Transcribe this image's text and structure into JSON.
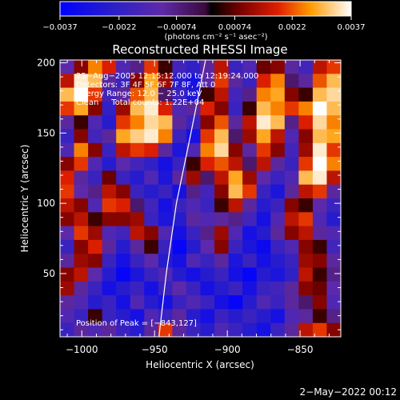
{
  "chart_data": {
    "type": "heatmap",
    "title": "Reconstructed RHESSI Image",
    "xlabel": "Heliocentric X (arcsec)",
    "ylabel": "Heliocentric Y (arcsec)",
    "xlim": [
      -1015,
      -822
    ],
    "ylim": [
      5,
      202
    ],
    "x_ticks": [
      -1000,
      -950,
      -900,
      -850
    ],
    "x_tick_labels": [
      "−1000",
      "−950",
      "−900",
      "−850"
    ],
    "y_ticks": [
      50,
      100,
      150,
      200
    ],
    "y_tick_labels": [
      "50",
      "100",
      "150",
      "200"
    ],
    "colorbar": {
      "range": [
        -0.0037,
        0.0037
      ],
      "ticks": [
        -0.0037,
        -0.0022,
        -0.00074,
        0.00074,
        0.0022,
        0.0037
      ],
      "tick_labels": [
        "−0.0037",
        "−0.0022",
        "−0.00074",
        "0.00074",
        "0.0022",
        "0.0037"
      ],
      "unit": "(photons cm⁻² s⁻¹ asec⁻²)"
    },
    "annotations": [
      "25−Aug−2005 12:15:12.000 to 12:19:24.000",
      "Detectors: 3F 4F 5F 6F 7F 8F, Att 0",
      "Energy Range: 12.0 − 25.0 keV",
      "Clean     Total counts: 1.22E+04"
    ],
    "peak_label": "Position of Peak = [−843,127]",
    "limb_curve": [
      [
        -947,
        5
      ],
      [
        -942,
        50
      ],
      [
        -935,
        100
      ],
      [
        -925,
        150
      ],
      [
        -915,
        202
      ]
    ],
    "intensity_grid": {
      "rows": 20,
      "cols": 20,
      "note": "row 0 = top (y≈200), col 0 = left (x≈-1010); values in colorbar units",
      "values": [
        [
          -0.0012,
          0.001,
          0.0025,
          0.0018,
          -0.0015,
          -0.0008,
          0.002,
          0.0005,
          -0.0018,
          -0.0022,
          -0.001,
          0.0015,
          -0.002,
          -0.0015,
          0.0008,
          0.001,
          -0.001,
          -0.0018,
          0.0015,
          0.002
        ],
        [
          0.0015,
          0.0035,
          0.003,
          -0.001,
          -0.002,
          0.001,
          0.0028,
          0.0012,
          -0.0025,
          -0.003,
          -0.0012,
          0.002,
          -0.001,
          -0.002,
          0.0018,
          0.0025,
          -0.0005,
          -0.001,
          0.0022,
          0.003
        ],
        [
          0.003,
          0.0037,
          0.002,
          -0.0018,
          -0.001,
          0.0022,
          0.003,
          -0.0005,
          -0.002,
          -0.0028,
          0.0005,
          0.0015,
          -0.0018,
          -0.0008,
          0.0025,
          0.0028,
          0.001,
          0.0005,
          0.003,
          0.0033
        ],
        [
          0.002,
          0.0028,
          0.001,
          -0.0022,
          0.0012,
          0.003,
          0.0035,
          0.0018,
          -0.0015,
          -0.001,
          0.0018,
          0.001,
          -0.002,
          0.0005,
          0.003,
          0.0025,
          0.002,
          0.0025,
          0.0037,
          0.003
        ],
        [
          -0.001,
          0.0005,
          -0.0015,
          -0.0025,
          0.002,
          0.0025,
          0.0033,
          0.003,
          -0.001,
          -0.002,
          0.001,
          0.0022,
          -0.001,
          0.0015,
          0.0035,
          0.003,
          -0.0008,
          0.0018,
          0.0033,
          0.0025
        ],
        [
          -0.002,
          0.001,
          -0.0018,
          -0.001,
          0.0028,
          0.0032,
          0.0035,
          0.0025,
          -0.002,
          -0.003,
          0.002,
          0.003,
          -0.0005,
          0.0012,
          0.0028,
          0.0015,
          -0.0015,
          0.001,
          0.003,
          0.0028
        ],
        [
          -0.0015,
          0.0025,
          0.001,
          -0.002,
          0.0015,
          0.002,
          0.0018,
          -0.001,
          -0.0028,
          -0.0015,
          0.0025,
          0.0033,
          0.001,
          -0.001,
          0.002,
          0.001,
          -0.0018,
          0.0012,
          0.0035,
          0.002
        ],
        [
          0.001,
          0.002,
          -0.0015,
          -0.0025,
          -0.0012,
          -0.0018,
          -0.0022,
          -0.003,
          -0.002,
          0.0005,
          0.0018,
          0.0022,
          0.0015,
          -0.0005,
          0.0015,
          -0.001,
          -0.002,
          0.002,
          0.0037,
          0.0025
        ],
        [
          0.0018,
          -0.001,
          -0.002,
          0.0008,
          -0.002,
          -0.0025,
          -0.0015,
          -0.0028,
          -0.001,
          0.0012,
          -0.0005,
          0.0015,
          0.0028,
          0.0012,
          -0.0012,
          -0.002,
          -0.0015,
          0.003,
          0.0035,
          0.0015
        ],
        [
          0.002,
          -0.0012,
          -0.0008,
          0.0015,
          0.001,
          -0.002,
          -0.0025,
          -0.002,
          -0.003,
          -0.0008,
          -0.0018,
          0.001,
          0.003,
          0.002,
          -0.002,
          -0.0028,
          -0.001,
          0.0015,
          0.002,
          -0.001
        ],
        [
          0.0015,
          0.001,
          -0.0015,
          0.002,
          0.0018,
          -0.0005,
          -0.0018,
          -0.003,
          -0.002,
          -0.0015,
          -0.002,
          0.0005,
          0.0015,
          -0.001,
          -0.0025,
          -0.002,
          0.001,
          0.0005,
          -0.0012,
          -0.002
        ],
        [
          0.001,
          0.0015,
          0.0005,
          0.001,
          0.001,
          0.0012,
          -0.002,
          -0.0028,
          -0.0025,
          -0.001,
          -0.0015,
          -0.001,
          -0.0008,
          -0.0018,
          -0.003,
          -0.0015,
          0.0015,
          0.002,
          -0.0015,
          -0.0025
        ],
        [
          -0.0012,
          0.002,
          0.0012,
          -0.0015,
          -0.0018,
          0.0015,
          0.001,
          -0.0015,
          -0.003,
          -0.002,
          -0.0008,
          0.0012,
          -0.0015,
          -0.003,
          -0.0025,
          -0.001,
          0.001,
          0.0015,
          -0.001,
          -0.0015
        ],
        [
          -0.002,
          0.001,
          0.0018,
          -0.001,
          -0.0025,
          -0.001,
          0.0005,
          -0.002,
          -0.0035,
          -0.0025,
          -0.0012,
          0.001,
          -0.002,
          -0.0028,
          -0.0033,
          -0.002,
          -0.0015,
          0.001,
          0.0005,
          -0.0018
        ],
        [
          -0.001,
          0.0012,
          0.001,
          -0.002,
          -0.003,
          -0.002,
          -0.0012,
          -0.0025,
          -0.003,
          -0.0015,
          -0.002,
          -0.001,
          -0.0028,
          -0.002,
          -0.003,
          -0.0025,
          -0.002,
          0.0012,
          0.001,
          -0.001
        ],
        [
          0.001,
          0.0015,
          -0.0012,
          -0.0025,
          -0.0035,
          -0.0028,
          -0.002,
          -0.0015,
          -0.0025,
          -0.003,
          -0.0025,
          -0.002,
          -0.003,
          -0.0035,
          -0.0025,
          -0.0028,
          -0.0022,
          0.0015,
          0.0005,
          -0.0008
        ],
        [
          0.0012,
          -0.001,
          -0.002,
          -0.003,
          -0.0025,
          -0.002,
          -0.003,
          -0.002,
          -0.0012,
          -0.002,
          -0.003,
          -0.0025,
          -0.002,
          -0.003,
          -0.002,
          -0.0018,
          -0.001,
          0.001,
          0.0008,
          -0.0012
        ],
        [
          -0.001,
          -0.0015,
          -0.0025,
          -0.002,
          -0.003,
          -0.0015,
          -0.0025,
          -0.003,
          -0.002,
          -0.0015,
          -0.002,
          -0.003,
          -0.0035,
          -0.0025,
          -0.0015,
          -0.002,
          -0.001,
          -0.0005,
          0.001,
          -0.0015
        ],
        [
          -0.0015,
          -0.002,
          0.0005,
          -0.002,
          -0.0025,
          -0.003,
          -0.0015,
          -0.002,
          -0.001,
          -0.0025,
          -0.003,
          -0.002,
          -0.0025,
          -0.002,
          -0.0025,
          -0.003,
          -0.0015,
          -0.001,
          0.0005,
          -0.0008
        ],
        [
          -0.002,
          -0.001,
          -0.0015,
          -0.001,
          -0.002,
          -0.0025,
          -0.001,
          0.002,
          -0.001,
          -0.002,
          -0.0025,
          -0.0015,
          -0.002,
          -0.0025,
          -0.003,
          -0.002,
          -0.001,
          0.0015,
          0.002,
          0.001
        ]
      ]
    }
  },
  "footer": {
    "timestamp": "2−May−2022 00:12"
  }
}
